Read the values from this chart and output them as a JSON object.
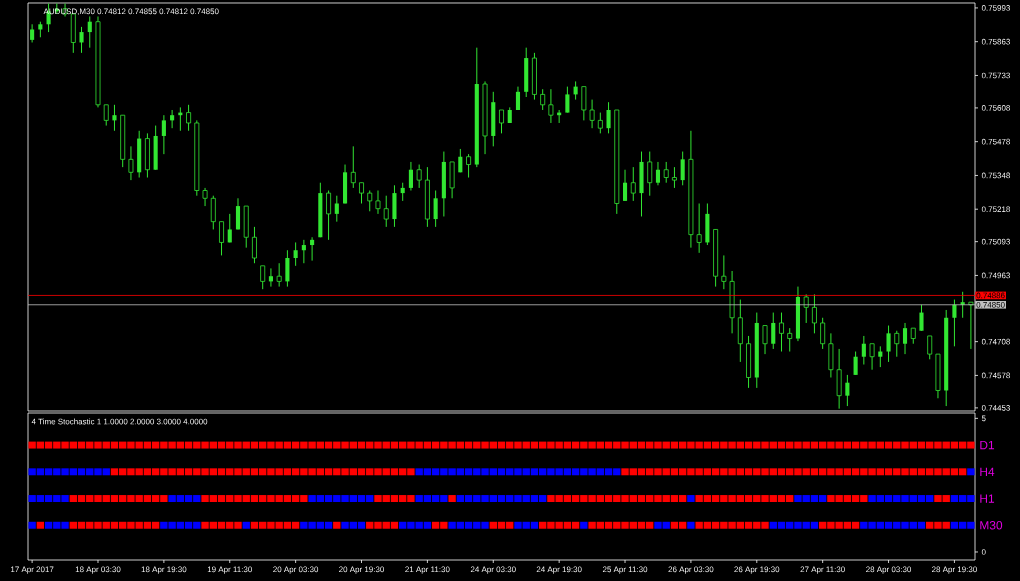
{
  "chart_data": [
    {
      "type": "candlestick",
      "title": "AUDUSD,M30 0.74812 0.74855 0.74812 0.74850",
      "color": "#32e632",
      "categories": [
        null,
        null,
        null,
        null,
        null,
        null,
        null,
        null,
        null,
        null,
        null,
        null,
        null,
        null,
        null,
        null,
        null,
        null,
        null,
        null,
        null,
        null,
        null,
        null,
        null,
        null,
        null,
        null,
        null,
        null,
        null,
        null,
        null,
        null,
        null,
        null,
        null,
        null,
        null,
        null,
        null,
        null,
        null,
        null,
        null,
        null,
        null,
        null,
        null,
        null,
        null,
        null,
        null,
        null,
        null,
        null,
        null,
        null,
        null,
        null,
        null,
        null,
        null,
        null,
        null,
        null,
        null,
        null,
        null,
        null,
        null,
        null,
        null,
        null,
        null,
        null,
        null,
        null,
        null,
        null,
        null,
        null,
        null,
        null,
        null,
        null,
        null,
        null,
        null,
        null,
        null,
        null,
        null,
        null,
        null,
        null,
        null,
        null,
        null,
        null,
        null,
        null,
        null,
        null,
        null,
        null,
        null,
        null,
        null,
        null,
        null,
        null,
        null,
        null,
        null
      ],
      "ohlc": [
        [
          0.7587,
          0.7593,
          0.7586,
          0.7591
        ],
        [
          0.7591,
          0.7594,
          0.7588,
          0.7593
        ],
        [
          0.7593,
          0.7601,
          0.759,
          0.7598
        ],
        [
          0.7598,
          0.7601,
          0.7597,
          0.7599
        ],
        [
          0.7599,
          0.7601,
          0.7596,
          0.7597
        ],
        [
          0.7597,
          0.7597,
          0.7582,
          0.7586
        ],
        [
          0.7586,
          0.7592,
          0.7582,
          0.759
        ],
        [
          0.759,
          0.7596,
          0.7584,
          0.7594
        ],
        [
          0.7594,
          0.7596,
          0.7561,
          0.7562
        ],
        [
          0.7562,
          0.7562,
          0.7554,
          0.7556
        ],
        [
          0.7556,
          0.7562,
          0.7552,
          0.7558
        ],
        [
          0.7558,
          0.7558,
          0.7538,
          0.7541
        ],
        [
          0.7541,
          0.7546,
          0.7533,
          0.7536
        ],
        [
          0.7536,
          0.7552,
          0.7534,
          0.7549
        ],
        [
          0.7549,
          0.7551,
          0.7534,
          0.7537
        ],
        [
          0.7537,
          0.7554,
          0.7537,
          0.755
        ],
        [
          0.755,
          0.7558,
          0.7543,
          0.7556
        ],
        [
          0.7556,
          0.756,
          0.7553,
          0.7558
        ],
        [
          0.7558,
          0.7561,
          0.7552,
          0.7559
        ],
        [
          0.7559,
          0.7562,
          0.7552,
          0.7555
        ],
        [
          0.7555,
          0.7556,
          0.7527,
          0.7529
        ],
        [
          0.7529,
          0.753,
          0.7523,
          0.7526
        ],
        [
          0.7526,
          0.7527,
          0.7514,
          0.7517
        ],
        [
          0.7517,
          0.7517,
          0.7504,
          0.7509
        ],
        [
          0.7509,
          0.752,
          0.7509,
          0.7514
        ],
        [
          0.7514,
          0.7526,
          0.7514,
          0.7523
        ],
        [
          0.7523,
          0.7523,
          0.7507,
          0.7511
        ],
        [
          0.7511,
          0.7515,
          0.7501,
          0.7503
        ],
        [
          0.75,
          0.75,
          0.7491,
          0.7494
        ],
        [
          0.7494,
          0.7499,
          0.7492,
          0.7496
        ],
        [
          0.7496,
          0.7501,
          0.7492,
          0.7494
        ],
        [
          0.7494,
          0.7506,
          0.7492,
          0.7503
        ],
        [
          0.7503,
          0.7509,
          0.75,
          0.7506
        ],
        [
          0.7506,
          0.751,
          0.7501,
          0.7508
        ],
        [
          0.7508,
          0.7511,
          0.7502,
          0.751
        ],
        [
          0.7511,
          0.7532,
          0.7511,
          0.7528
        ],
        [
          0.7528,
          0.7529,
          0.751,
          0.752
        ],
        [
          0.752,
          0.7527,
          0.7517,
          0.7524
        ],
        [
          0.7524,
          0.7539,
          0.7524,
          0.7536
        ],
        [
          0.7536,
          0.7546,
          0.753,
          0.7532
        ],
        [
          0.7532,
          0.7532,
          0.7524,
          0.7528
        ],
        [
          0.7528,
          0.7529,
          0.7521,
          0.7525
        ],
        [
          0.7525,
          0.7529,
          0.752,
          0.7522
        ],
        [
          0.7522,
          0.7527,
          0.7515,
          0.7518
        ],
        [
          0.7518,
          0.7531,
          0.7515,
          0.7528
        ],
        [
          0.7528,
          0.7532,
          0.7525,
          0.753
        ],
        [
          0.753,
          0.754,
          0.7529,
          0.7537
        ],
        [
          0.7537,
          0.7539,
          0.753,
          0.7533
        ],
        [
          0.7533,
          0.7538,
          0.7515,
          0.7518
        ],
        [
          0.7518,
          0.7529,
          0.7515,
          0.7526
        ],
        [
          0.7526,
          0.7544,
          0.7519,
          0.754
        ],
        [
          0.754,
          0.754,
          0.7526,
          0.753
        ],
        [
          0.7536,
          0.7545,
          0.7536,
          0.7542
        ],
        [
          0.7542,
          0.7543,
          0.7534,
          0.7539
        ],
        [
          0.7539,
          0.7584,
          0.7538,
          0.757
        ],
        [
          0.757,
          0.7571,
          0.7543,
          0.755
        ],
        [
          0.755,
          0.7567,
          0.7546,
          0.7563
        ],
        [
          0.756,
          0.756,
          0.7551,
          0.7555
        ],
        [
          0.7555,
          0.7561,
          0.7555,
          0.756
        ],
        [
          0.756,
          0.7569,
          0.756,
          0.7567
        ],
        [
          0.7567,
          0.7584,
          0.7565,
          0.758
        ],
        [
          0.758,
          0.7582,
          0.7564,
          0.7566
        ],
        [
          0.7566,
          0.7568,
          0.756,
          0.7562
        ],
        [
          0.7562,
          0.7568,
          0.7555,
          0.7558
        ],
        [
          0.7558,
          0.756,
          0.7555,
          0.7559
        ],
        [
          0.7559,
          0.7569,
          0.7559,
          0.7566
        ],
        [
          0.7566,
          0.7571,
          0.7564,
          0.7569
        ],
        [
          0.7569,
          0.7569,
          0.7556,
          0.756
        ],
        [
          0.756,
          0.7564,
          0.7553,
          0.7556
        ],
        [
          0.7556,
          0.7559,
          0.7551,
          0.7553
        ],
        [
          0.7553,
          0.7563,
          0.7551,
          0.756
        ],
        [
          0.756,
          0.756,
          0.752,
          0.7524
        ],
        [
          0.7525,
          0.7537,
          0.7525,
          0.7532
        ],
        [
          0.7532,
          0.7538,
          0.7525,
          0.7528
        ],
        [
          0.7528,
          0.7544,
          0.7519,
          0.754
        ],
        [
          0.754,
          0.7544,
          0.7527,
          0.7532
        ],
        [
          0.7532,
          0.754,
          0.7531,
          0.7537
        ],
        [
          0.7537,
          0.754,
          0.7532,
          0.7534
        ],
        [
          0.7534,
          0.7538,
          0.753,
          0.7533
        ],
        [
          0.7533,
          0.7544,
          0.7531,
          0.7541
        ],
        [
          0.7541,
          0.7552,
          0.7507,
          0.7512
        ],
        [
          0.7512,
          0.7524,
          0.7505,
          0.7509
        ],
        [
          0.7509,
          0.7524,
          0.7508,
          0.752
        ],
        [
          0.7514,
          0.7514,
          0.7492,
          0.7496
        ],
        [
          0.7496,
          0.7504,
          0.7491,
          0.7494
        ],
        [
          0.7494,
          0.7498,
          0.7474,
          0.748
        ],
        [
          0.748,
          0.7487,
          0.7463,
          0.747
        ],
        [
          0.747,
          0.7473,
          0.7453,
          0.7457
        ],
        [
          0.7457,
          0.7482,
          0.7453,
          0.7478
        ],
        [
          0.7477,
          0.7477,
          0.7466,
          0.747
        ],
        [
          0.747,
          0.7482,
          0.7468,
          0.7478
        ],
        [
          0.7478,
          0.7482,
          0.7467,
          0.7474
        ],
        [
          0.7474,
          0.7476,
          0.7467,
          0.7472
        ],
        [
          0.7472,
          0.7492,
          0.7471,
          0.7488
        ],
        [
          0.7488,
          0.7489,
          0.7478,
          0.7484
        ],
        [
          0.7484,
          0.7489,
          0.7474,
          0.7478
        ],
        [
          0.7478,
          0.748,
          0.7468,
          0.747
        ],
        [
          0.747,
          0.7474,
          0.7457,
          0.746
        ],
        [
          0.746,
          0.7468,
          0.7445,
          0.745
        ],
        [
          0.745,
          0.7458,
          0.7446,
          0.7455
        ],
        [
          0.7458,
          0.7467,
          0.7458,
          0.7465
        ],
        [
          0.7465,
          0.7473,
          0.7462,
          0.747
        ],
        [
          0.747,
          0.747,
          0.746,
          0.7465
        ],
        [
          0.7465,
          0.7469,
          0.7461,
          0.7467
        ],
        [
          0.7467,
          0.7477,
          0.7463,
          0.7474
        ],
        [
          0.7474,
          0.7475,
          0.7465,
          0.747
        ],
        [
          0.747,
          0.7478,
          0.7466,
          0.7476
        ],
        [
          0.7476,
          0.7476,
          0.747,
          0.7472
        ],
        [
          0.7475,
          0.7485,
          0.7475,
          0.7482
        ],
        [
          0.7473,
          0.7473,
          0.7464,
          0.7466
        ],
        [
          0.7466,
          0.7466,
          0.7449,
          0.7452
        ],
        [
          0.7452,
          0.7483,
          0.7446,
          0.748
        ],
        [
          0.748,
          0.7487,
          0.7469,
          0.7485
        ],
        [
          0.7485,
          0.749,
          0.748,
          0.7486
        ],
        [
          0.7486,
          0.7486,
          0.7468,
          0.7485
        ]
      ],
      "ylim": [
        0.74441,
        0.76012
      ],
      "yticks": [
        0.75993,
        0.75863,
        0.75733,
        0.75608,
        0.75478,
        0.75348,
        0.75218,
        0.75093,
        0.74963,
        0.74708,
        0.74578,
        0.74453
      ],
      "ref_lines": [
        {
          "axis": "y",
          "value": 0.74886,
          "label": "0.74886",
          "color": "#ff0000"
        },
        {
          "axis": "y",
          "value": 0.7485,
          "label": "0.74850",
          "color": "#c0c0c0"
        }
      ],
      "tick_labels": "y"
    },
    {
      "type": "scatter",
      "marker": "square",
      "title": "4 Time Stochastic 1 1.0000 2.0000 3.0000 4.0000",
      "categories": [
        "17 Apr 2017",
        null,
        null,
        null,
        null,
        null,
        null,
        null,
        "18 Apr 03:30",
        null,
        null,
        null,
        null,
        null,
        null,
        null,
        "18 Apr 19:30",
        null,
        null,
        null,
        null,
        null,
        null,
        null,
        "19 Apr 11:30",
        null,
        null,
        null,
        null,
        null,
        null,
        null,
        "20 Apr 03:30",
        null,
        null,
        null,
        null,
        null,
        null,
        null,
        "20 Apr 19:30",
        null,
        null,
        null,
        null,
        null,
        null,
        null,
        "21 Apr 11:30",
        null,
        null,
        null,
        null,
        null,
        null,
        null,
        "24 Apr 03:30",
        null,
        null,
        null,
        null,
        null,
        null,
        null,
        "24 Apr 19:30",
        null,
        null,
        null,
        null,
        null,
        null,
        null,
        "25 Apr 11:30",
        null,
        null,
        null,
        null,
        null,
        null,
        null,
        "26 Apr 03:30",
        null,
        null,
        null,
        null,
        null,
        null,
        null,
        "26 Apr 19:30",
        null,
        null,
        null,
        null,
        null,
        null,
        null,
        "27 Apr 11:30",
        null,
        null,
        null,
        null,
        null,
        null,
        null,
        "28 Apr 03:30",
        null,
        null,
        null,
        null,
        null,
        null,
        null,
        "28 Apr 19:30",
        null,
        null
      ],
      "series": [
        {
          "name": "D1",
          "values": [
            4,
            4,
            4,
            4,
            4,
            4,
            4,
            4,
            4,
            4,
            4,
            4,
            4,
            4,
            4,
            4,
            4,
            4,
            4,
            4,
            4,
            4,
            4,
            4,
            4,
            4,
            4,
            4,
            4,
            4,
            4,
            4,
            4,
            4,
            4,
            4,
            4,
            4,
            4,
            4,
            4,
            4,
            4,
            4,
            4,
            4,
            4,
            4,
            4,
            4,
            4,
            4,
            4,
            4,
            4,
            4,
            4,
            4,
            4,
            4,
            4,
            4,
            4,
            4,
            4,
            4,
            4,
            4,
            4,
            4,
            4,
            4,
            4,
            4,
            4,
            4,
            4,
            4,
            4,
            4,
            4,
            4,
            4,
            4,
            4,
            4,
            4,
            4,
            4,
            4,
            4,
            4,
            4,
            4,
            4,
            4,
            4,
            4,
            4,
            4,
            4,
            4,
            4,
            4,
            4,
            4,
            4,
            4,
            4,
            4,
            4,
            4,
            4,
            4,
            4
          ],
          "colors": [
            "#ff0000",
            "#ff0000",
            "#ff0000",
            "#ff0000",
            "#ff0000",
            "#ff0000",
            "#ff0000",
            "#ff0000",
            "#ff0000",
            "#ff0000",
            "#ff0000",
            "#ff0000",
            "#ff0000",
            "#ff0000",
            "#ff0000",
            "#ff0000",
            "#ff0000",
            "#ff0000",
            "#ff0000",
            "#ff0000",
            "#ff0000",
            "#ff0000",
            "#ff0000",
            "#ff0000",
            "#ff0000",
            "#ff0000",
            "#ff0000",
            "#ff0000",
            "#ff0000",
            "#ff0000",
            "#ff0000",
            "#ff0000",
            "#ff0000",
            "#ff0000",
            "#ff0000",
            "#ff0000",
            "#ff0000",
            "#ff0000",
            "#ff0000",
            "#ff0000",
            "#ff0000",
            "#ff0000",
            "#ff0000",
            "#ff0000",
            "#ff0000",
            "#ff0000",
            "#ff0000",
            "#ff0000",
            "#ff0000",
            "#ff0000",
            "#ff0000",
            "#ff0000",
            "#ff0000",
            "#ff0000",
            "#ff0000",
            "#ff0000",
            "#ff0000",
            "#ff0000",
            "#ff0000",
            "#ff0000",
            "#ff0000",
            "#ff0000",
            "#ff0000",
            "#ff0000",
            "#ff0000",
            "#ff0000",
            "#ff0000",
            "#ff0000",
            "#ff0000",
            "#ff0000",
            "#ff0000",
            "#ff0000",
            "#ff0000",
            "#ff0000",
            "#ff0000",
            "#ff0000",
            "#ff0000",
            "#ff0000",
            "#ff0000",
            "#ff0000",
            "#ff0000",
            "#ff0000",
            "#ff0000",
            "#ff0000",
            "#ff0000",
            "#ff0000",
            "#ff0000",
            "#ff0000",
            "#ff0000",
            "#ff0000",
            "#ff0000",
            "#ff0000",
            "#ff0000",
            "#ff0000",
            "#ff0000",
            "#ff0000",
            "#ff0000",
            "#ff0000",
            "#ff0000",
            "#ff0000",
            "#ff0000",
            "#ff0000",
            "#ff0000",
            "#ff0000",
            "#ff0000",
            "#ff0000",
            "#ff0000",
            "#ff0000",
            "#ff0000",
            "#ff0000",
            "#ff0000",
            "#ff0000",
            "#ff0000",
            "#ff0000",
            "#ff0000"
          ]
        },
        {
          "name": "H4",
          "values": [
            3,
            3,
            3,
            3,
            3,
            3,
            3,
            3,
            3,
            3,
            3,
            3,
            3,
            3,
            3,
            3,
            3,
            3,
            3,
            3,
            3,
            3,
            3,
            3,
            3,
            3,
            3,
            3,
            3,
            3,
            3,
            3,
            3,
            3,
            3,
            3,
            3,
            3,
            3,
            3,
            3,
            3,
            3,
            3,
            3,
            3,
            3,
            3,
            3,
            3,
            3,
            3,
            3,
            3,
            3,
            3,
            3,
            3,
            3,
            3,
            3,
            3,
            3,
            3,
            3,
            3,
            3,
            3,
            3,
            3,
            3,
            3,
            3,
            3,
            3,
            3,
            3,
            3,
            3,
            3,
            3,
            3,
            3,
            3,
            3,
            3,
            3,
            3,
            3,
            3,
            3,
            3,
            3,
            3,
            3,
            3,
            3,
            3,
            3,
            3,
            3,
            3,
            3,
            3,
            3,
            3,
            3,
            3,
            3,
            3,
            3,
            3,
            3,
            3,
            3
          ],
          "colors": [
            "#0000ff",
            "#0000ff",
            "#0000ff",
            "#0000ff",
            "#0000ff",
            "#0000ff",
            "#0000ff",
            "#0000ff",
            "#0000ff",
            "#0000ff",
            "#ff0000",
            "#ff0000",
            "#ff0000",
            "#ff0000",
            "#ff0000",
            "#ff0000",
            "#ff0000",
            "#ff0000",
            "#ff0000",
            "#ff0000",
            "#ff0000",
            "#ff0000",
            "#ff0000",
            "#ff0000",
            "#ff0000",
            "#ff0000",
            "#ff0000",
            "#ff0000",
            "#ff0000",
            "#ff0000",
            "#ff0000",
            "#ff0000",
            "#ff0000",
            "#ff0000",
            "#ff0000",
            "#ff0000",
            "#ff0000",
            "#ff0000",
            "#ff0000",
            "#ff0000",
            "#ff0000",
            "#ff0000",
            "#ff0000",
            "#ff0000",
            "#ff0000",
            "#ff0000",
            "#ff0000",
            "#0000ff",
            "#0000ff",
            "#0000ff",
            "#0000ff",
            "#0000ff",
            "#0000ff",
            "#0000ff",
            "#0000ff",
            "#0000ff",
            "#0000ff",
            "#0000ff",
            "#0000ff",
            "#0000ff",
            "#0000ff",
            "#0000ff",
            "#0000ff",
            "#0000ff",
            "#0000ff",
            "#0000ff",
            "#0000ff",
            "#0000ff",
            "#0000ff",
            "#0000ff",
            "#0000ff",
            "#0000ff",
            "#ff0000",
            "#ff0000",
            "#ff0000",
            "#ff0000",
            "#ff0000",
            "#ff0000",
            "#ff0000",
            "#ff0000",
            "#ff0000",
            "#ff0000",
            "#ff0000",
            "#ff0000",
            "#ff0000",
            "#ff0000",
            "#ff0000",
            "#ff0000",
            "#ff0000",
            "#ff0000",
            "#ff0000",
            "#ff0000",
            "#ff0000",
            "#ff0000",
            "#ff0000",
            "#ff0000",
            "#ff0000",
            "#ff0000",
            "#ff0000",
            "#ff0000",
            "#ff0000",
            "#ff0000",
            "#ff0000",
            "#ff0000",
            "#ff0000",
            "#ff0000",
            "#ff0000",
            "#ff0000",
            "#ff0000",
            "#ff0000",
            "#ff0000",
            "#ff0000",
            "#ff0000",
            "#ff0000",
            "#0000ff"
          ]
        },
        {
          "name": "H1",
          "values": [
            2,
            2,
            2,
            2,
            2,
            2,
            2,
            2,
            2,
            2,
            2,
            2,
            2,
            2,
            2,
            2,
            2,
            2,
            2,
            2,
            2,
            2,
            2,
            2,
            2,
            2,
            2,
            2,
            2,
            2,
            2,
            2,
            2,
            2,
            2,
            2,
            2,
            2,
            2,
            2,
            2,
            2,
            2,
            2,
            2,
            2,
            2,
            2,
            2,
            2,
            2,
            2,
            2,
            2,
            2,
            2,
            2,
            2,
            2,
            2,
            2,
            2,
            2,
            2,
            2,
            2,
            2,
            2,
            2,
            2,
            2,
            2,
            2,
            2,
            2,
            2,
            2,
            2,
            2,
            2,
            2,
            2,
            2,
            2,
            2,
            2,
            2,
            2,
            2,
            2,
            2,
            2,
            2,
            2,
            2,
            2,
            2,
            2,
            2,
            2,
            2,
            2,
            2,
            2,
            2,
            2,
            2,
            2,
            2,
            2,
            2,
            2,
            2,
            2,
            2
          ],
          "colors": [
            "#0000ff",
            "#0000ff",
            "#0000ff",
            "#0000ff",
            "#0000ff",
            "#ff0000",
            "#ff0000",
            "#ff0000",
            "#ff0000",
            "#ff0000",
            "#ff0000",
            "#ff0000",
            "#ff0000",
            "#ff0000",
            "#ff0000",
            "#ff0000",
            "#ff0000",
            "#0000ff",
            "#0000ff",
            "#0000ff",
            "#0000ff",
            "#ff0000",
            "#ff0000",
            "#ff0000",
            "#ff0000",
            "#ff0000",
            "#ff0000",
            "#ff0000",
            "#ff0000",
            "#ff0000",
            "#ff0000",
            "#ff0000",
            "#ff0000",
            "#ff0000",
            "#0000ff",
            "#0000ff",
            "#0000ff",
            "#0000ff",
            "#0000ff",
            "#0000ff",
            "#0000ff",
            "#0000ff",
            "#ff0000",
            "#ff0000",
            "#ff0000",
            "#ff0000",
            "#ff0000",
            "#0000ff",
            "#0000ff",
            "#0000ff",
            "#0000ff",
            "#ff0000",
            "#0000ff",
            "#0000ff",
            "#0000ff",
            "#0000ff",
            "#0000ff",
            "#0000ff",
            "#0000ff",
            "#0000ff",
            "#0000ff",
            "#0000ff",
            "#0000ff",
            "#ff0000",
            "#ff0000",
            "#ff0000",
            "#ff0000",
            "#ff0000",
            "#ff0000",
            "#ff0000",
            "#ff0000",
            "#ff0000",
            "#ff0000",
            "#ff0000",
            "#ff0000",
            "#ff0000",
            "#ff0000",
            "#ff0000",
            "#ff0000",
            "#ff0000",
            "#0000ff",
            "#ff0000",
            "#ff0000",
            "#ff0000",
            "#ff0000",
            "#ff0000",
            "#ff0000",
            "#ff0000",
            "#ff0000",
            "#ff0000",
            "#ff0000",
            "#ff0000",
            "#ff0000",
            "#0000ff",
            "#0000ff",
            "#0000ff",
            "#0000ff",
            "#ff0000",
            "#ff0000",
            "#ff0000",
            "#ff0000",
            "#ff0000",
            "#0000ff",
            "#0000ff",
            "#0000ff",
            "#0000ff",
            "#0000ff",
            "#0000ff",
            "#0000ff",
            "#0000ff",
            "#ff0000",
            "#ff0000",
            "#0000ff",
            "#0000ff",
            "#0000ff"
          ]
        },
        {
          "name": "M30",
          "values": [
            1,
            1,
            1,
            1,
            1,
            1,
            1,
            1,
            1,
            1,
            1,
            1,
            1,
            1,
            1,
            1,
            1,
            1,
            1,
            1,
            1,
            1,
            1,
            1,
            1,
            1,
            1,
            1,
            1,
            1,
            1,
            1,
            1,
            1,
            1,
            1,
            1,
            1,
            1,
            1,
            1,
            1,
            1,
            1,
            1,
            1,
            1,
            1,
            1,
            1,
            1,
            1,
            1,
            1,
            1,
            1,
            1,
            1,
            1,
            1,
            1,
            1,
            1,
            1,
            1,
            1,
            1,
            1,
            1,
            1,
            1,
            1,
            1,
            1,
            1,
            1,
            1,
            1,
            1,
            1,
            1,
            1,
            1,
            1,
            1,
            1,
            1,
            1,
            1,
            1,
            1,
            1,
            1,
            1,
            1,
            1,
            1,
            1,
            1,
            1,
            1,
            1,
            1,
            1,
            1,
            1,
            1,
            1,
            1,
            1,
            1,
            1,
            1,
            1,
            1
          ],
          "colors": [
            "#0000ff",
            "#ff0000",
            "#0000ff",
            "#0000ff",
            "#0000ff",
            "#ff0000",
            "#ff0000",
            "#ff0000",
            "#ff0000",
            "#ff0000",
            "#ff0000",
            "#ff0000",
            "#ff0000",
            "#ff0000",
            "#ff0000",
            "#ff0000",
            "#0000ff",
            "#0000ff",
            "#0000ff",
            "#0000ff",
            "#0000ff",
            "#ff0000",
            "#ff0000",
            "#ff0000",
            "#ff0000",
            "#ff0000",
            "#0000ff",
            "#ff0000",
            "#ff0000",
            "#ff0000",
            "#ff0000",
            "#ff0000",
            "#ff0000",
            "#0000ff",
            "#0000ff",
            "#0000ff",
            "#0000ff",
            "#ff0000",
            "#0000ff",
            "#0000ff",
            "#0000ff",
            "#ff0000",
            "#ff0000",
            "#ff0000",
            "#ff0000",
            "#0000ff",
            "#0000ff",
            "#0000ff",
            "#0000ff",
            "#ff0000",
            "#ff0000",
            "#0000ff",
            "#0000ff",
            "#0000ff",
            "#0000ff",
            "#0000ff",
            "#ff0000",
            "#ff0000",
            "#ff0000",
            "#0000ff",
            "#0000ff",
            "#0000ff",
            "#ff0000",
            "#ff0000",
            "#ff0000",
            "#ff0000",
            "#ff0000",
            "#0000ff",
            "#ff0000",
            "#ff0000",
            "#ff0000",
            "#ff0000",
            "#ff0000",
            "#ff0000",
            "#ff0000",
            "#ff0000",
            "#0000ff",
            "#0000ff",
            "#ff0000",
            "#ff0000",
            "#0000ff",
            "#ff0000",
            "#ff0000",
            "#ff0000",
            "#ff0000",
            "#ff0000",
            "#ff0000",
            "#ff0000",
            "#ff0000",
            "#ff0000",
            "#0000ff",
            "#0000ff",
            "#0000ff",
            "#0000ff",
            "#0000ff",
            "#0000ff",
            "#ff0000",
            "#ff0000",
            "#ff0000",
            "#ff0000",
            "#ff0000",
            "#0000ff",
            "#0000ff",
            "#0000ff",
            "#0000ff",
            "#0000ff",
            "#0000ff",
            "#0000ff",
            "#0000ff",
            "#ff0000",
            "#ff0000",
            "#ff0000",
            "#0000ff",
            "#0000ff",
            "#0000ff"
          ]
        }
      ],
      "ylim": [
        -0.3,
        5.2
      ],
      "yticks": [
        {
          "value": 0,
          "label": "0"
        },
        {
          "value": 5,
          "label": "5"
        }
      ]
    }
  ]
}
